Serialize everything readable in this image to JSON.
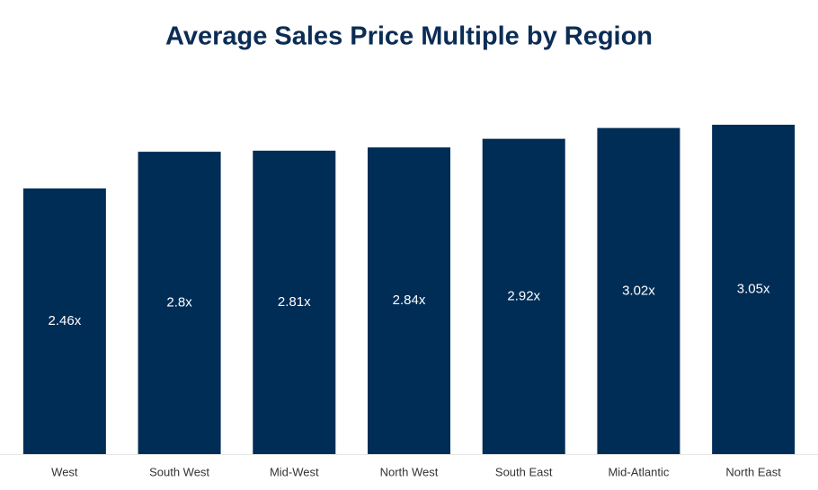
{
  "chart_data": {
    "type": "bar",
    "title": "Average Sales Price Multiple by Region",
    "categories": [
      "West",
      "South West",
      "Mid-West",
      "North West",
      "South East",
      "Mid-Atlantic",
      "North East"
    ],
    "values": [
      2.46,
      2.8,
      2.81,
      2.84,
      2.92,
      3.02,
      3.05
    ],
    "value_labels": [
      "2.46x",
      "2.8x",
      "2.81x",
      "2.84x",
      "2.92x",
      "3.02x",
      "3.05x"
    ],
    "color": "#002d56"
  }
}
